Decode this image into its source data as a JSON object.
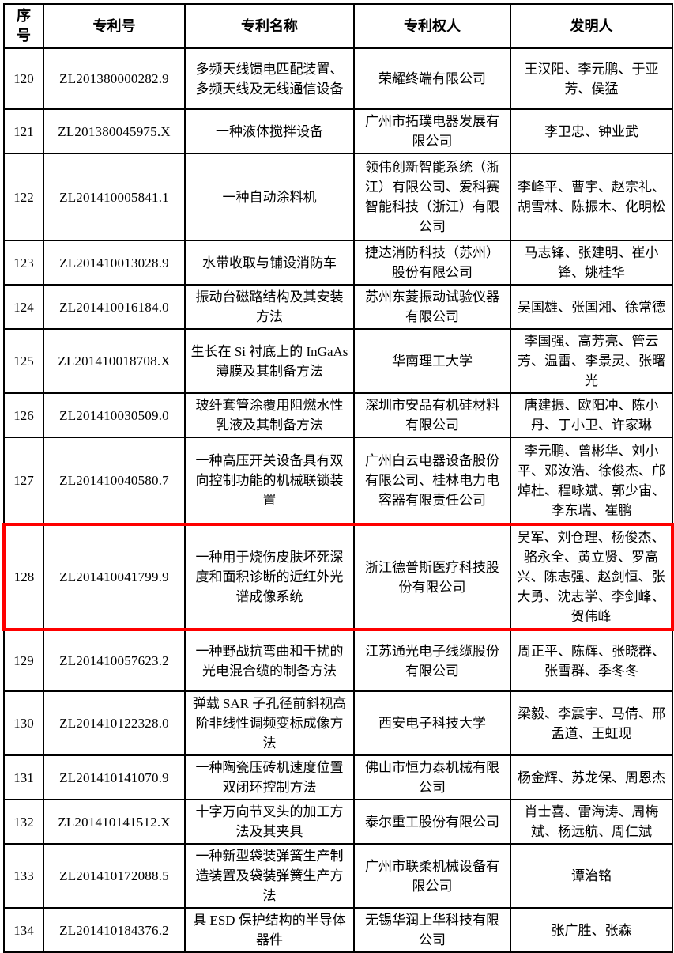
{
  "table": {
    "headers": [
      "序号",
      "专利号",
      "专利名称",
      "专利权人",
      "发明人"
    ],
    "highlight": {
      "row_no": "128",
      "color": "#fe0000"
    },
    "rows": [
      {
        "no": "120",
        "patent_no": "ZL201380000282.9",
        "title": "多频天线馈电匹配装置、多频天线及无线通信设备",
        "assignee": "荣耀终端有限公司",
        "inventors": "王汉阳、李元鹏、于亚芳、侯猛",
        "highlighted": false
      },
      {
        "no": "121",
        "patent_no": "ZL201380045975.X",
        "title": "一种液体搅拌设备",
        "assignee": "广州市拓璞电器发展有限公司",
        "inventors": "李卫忠、钟业武",
        "highlighted": false
      },
      {
        "no": "122",
        "patent_no": "ZL201410005841.1",
        "title": "一种自动涂料机",
        "assignee": "领伟创新智能系统（浙江）有限公司、爱科赛智能科技（浙江）有限公司",
        "inventors": "李峰平、曹宇、赵宗礼、胡雪林、陈振木、化明松",
        "highlighted": false
      },
      {
        "no": "123",
        "patent_no": "ZL201410013028.9",
        "title": "水带收取与铺设消防车",
        "assignee": "捷达消防科技（苏州）股份有限公司",
        "inventors": "马志锋、张建明、崔小锋、姚桂华",
        "highlighted": false
      },
      {
        "no": "124",
        "patent_no": "ZL201410016184.0",
        "title": "振动台磁路结构及其安装方法",
        "assignee": "苏州东菱振动试验仪器有限公司",
        "inventors": "吴国雄、张国湘、徐常德",
        "highlighted": false
      },
      {
        "no": "125",
        "patent_no": "ZL201410018708.X",
        "title": "生长在 Si 衬底上的 InGaAs 薄膜及其制备方法",
        "assignee": "华南理工大学",
        "inventors": "李国强、高芳亮、管云芳、温雷、李景灵、张曙光",
        "highlighted": false
      },
      {
        "no": "126",
        "patent_no": "ZL201410030509.0",
        "title": "玻纤套管涂覆用阻燃水性乳液及其制备方法",
        "assignee": "深圳市安品有机硅材料有限公司",
        "inventors": "唐建振、欧阳冲、陈小丹、丁小卫、许家琳",
        "highlighted": false
      },
      {
        "no": "127",
        "patent_no": "ZL201410040580.7",
        "title": "一种高压开关设备具有双向控制功能的机械联锁装置",
        "assignee": "广州白云电器设备股份有限公司、桂林电力电容器有限责任公司",
        "inventors": "李元鹏、曾彬华、刘小平、邓汝浩、徐俊杰、邝焯杜、程咏斌、郭少宙、李东瑞、崔鹏",
        "highlighted": false
      },
      {
        "no": "128",
        "patent_no": "ZL201410041799.9",
        "title": "一种用于烧伤皮肤坏死深度和面积诊断的近红外光谱成像系统",
        "assignee": "浙江德普斯医疗科技股份有限公司",
        "inventors": "吴军、刘仓理、杨俊杰、骆永全、黄立贤、罗高兴、陈志强、赵剑恒、张大勇、沈志学、李剑峰、贺伟峰",
        "highlighted": true
      },
      {
        "no": "129",
        "patent_no": "ZL201410057623.2",
        "title": "一种野战抗弯曲和干扰的光电混合缆的制备方法",
        "assignee": "江苏通光电子线缆股份有限公司",
        "inventors": "周正平、陈辉、张晓群、张雪群、季冬冬",
        "highlighted": false
      },
      {
        "no": "130",
        "patent_no": "ZL201410122328.0",
        "title": "弹载 SAR 子孔径前斜视高阶非线性调频变标成像方法",
        "assignee": "西安电子科技大学",
        "inventors": "梁毅、李震宇、马倩、邢孟道、王虹现",
        "highlighted": false
      },
      {
        "no": "131",
        "patent_no": "ZL201410141070.9",
        "title": "一种陶瓷压砖机速度位置双闭环控制方法",
        "assignee": "佛山市恒力泰机械有限公司",
        "inventors": "杨金辉、苏龙保、周恩杰",
        "highlighted": false
      },
      {
        "no": "132",
        "patent_no": "ZL201410141512.X",
        "title": "十字万向节叉头的加工方法及其夹具",
        "assignee": "泰尔重工股份有限公司",
        "inventors": "肖士喜、雷海涛、周梅斌、杨远航、周仁斌",
        "highlighted": false
      },
      {
        "no": "133",
        "patent_no": "ZL201410172088.5",
        "title": "一种新型袋装弹簧生产制造装置及袋装弹簧生产方法",
        "assignee": "广州市联柔机械设备有限公司",
        "inventors": "谭治铭",
        "highlighted": false
      },
      {
        "no": "134",
        "patent_no": "ZL201410184376.2",
        "title": "具 ESD 保护结构的半导体器件",
        "assignee": "无锡华润上华科技有限公司",
        "inventors": "张广胜、张森",
        "highlighted": false
      }
    ]
  }
}
